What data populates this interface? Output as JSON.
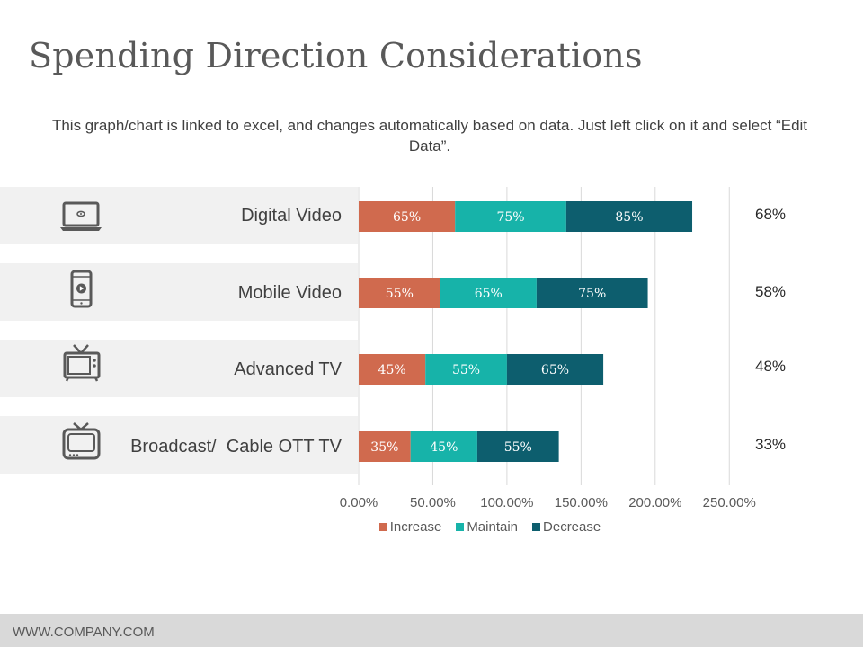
{
  "title": "Spending Direction Considerations",
  "subtitle": "This graph/chart is linked to excel, and changes automatically based on data. Just left click on it and select “Edit Data”.",
  "footer": "WWW.COMPANY.COM",
  "colors": {
    "increase": "#d06a4e",
    "maintain": "#17b3a9",
    "decrease": "#0d5e6e",
    "grid": "#d9d9d9",
    "row_bg": "#f1f1f1"
  },
  "rows": [
    {
      "label": "Digital Video",
      "icon": "laptop-icon",
      "side_value": "68%"
    },
    {
      "label": "Mobile Video",
      "icon": "smartphone-icon",
      "side_value": "58%"
    },
    {
      "label": "Advanced TV",
      "icon": "retro-tv-icon",
      "side_value": "48%"
    },
    {
      "label": "Broadcast/  Cable OTT TV",
      "icon": "tv-icon",
      "side_value": "33%"
    }
  ],
  "chart_data": {
    "type": "bar",
    "orientation": "horizontal",
    "stacked": true,
    "categories": [
      "Digital Video",
      "Mobile Video",
      "Advanced TV",
      "Broadcast/  Cable OTT TV"
    ],
    "series": [
      {
        "name": "Increase",
        "values": [
          65,
          55,
          45,
          35
        ],
        "labels": [
          "65%",
          "55%",
          "45%",
          "35%"
        ]
      },
      {
        "name": "Maintain",
        "values": [
          75,
          65,
          55,
          45
        ],
        "labels": [
          "75%",
          "65%",
          "55%",
          "45%"
        ]
      },
      {
        "name": "Decrease",
        "values": [
          85,
          75,
          65,
          55
        ],
        "labels": [
          "85%",
          "75%",
          "65%",
          "55%"
        ]
      }
    ],
    "xlim": [
      0,
      250
    ],
    "x_ticks": [
      0,
      50,
      100,
      150,
      200,
      250
    ],
    "x_tick_labels": [
      "0.00%",
      "50.00%",
      "100.00%",
      "150.00%",
      "200.00%",
      "250.00%"
    ],
    "legend_position": "bottom",
    "grid": true
  }
}
